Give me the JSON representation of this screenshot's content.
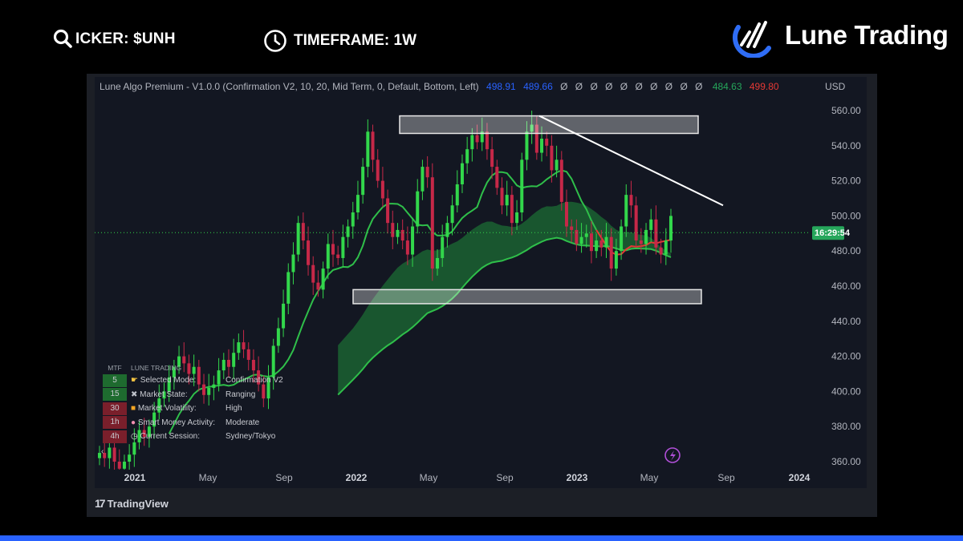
{
  "header": {
    "ticker_label": "ICKER: $UNH",
    "timeframe_label": "TIMEFRAME: 1W",
    "brand_name": "Lune Trading",
    "search_icon": "search-icon",
    "clock_icon": "clock-icon"
  },
  "indicator": {
    "label": "Lune Algo Premium - V1.0.0 (Confirmation V2, 10, 20, Mid Term, 0, Default, Bottom, Left)",
    "value_blue_1": "498.91",
    "value_blue_2": "489.66",
    "empty_values": "Ø Ø Ø Ø Ø Ø Ø Ø Ø Ø",
    "value_green": "484.63",
    "value_red": "499.80",
    "colors": {
      "blue": "#2962ff",
      "green": "#26a65b",
      "red": "#e53935",
      "text": "#b2b5be"
    }
  },
  "axis": {
    "currency": "USD",
    "price_ticks": [
      "560.00",
      "540.00",
      "520.00",
      "500.00",
      "480.00",
      "460.00",
      "440.00",
      "420.00",
      "400.00",
      "380.00",
      "360.00"
    ],
    "time_ticks": [
      "2021",
      "May",
      "Sep",
      "2022",
      "May",
      "Sep",
      "2023",
      "May",
      "Sep",
      "2024"
    ],
    "countdown": "16:29:54"
  },
  "mtf_table": {
    "header_left": "MTF",
    "header_right": "LUNE TRADING",
    "rows": [
      {
        "tf": "5",
        "label": "Selected Mode:",
        "value": "Confirmation V2",
        "color": "#1e6b2f"
      },
      {
        "tf": "15",
        "label": "Market State:",
        "value": "Ranging",
        "color": "#1e6b2f"
      },
      {
        "tf": "30",
        "label": "Market Volatility:",
        "value": "High",
        "color": "#7a1f2b"
      },
      {
        "tf": "1h",
        "label": "Smart Money Activity:",
        "value": "Moderate",
        "color": "#7a1f2b"
      },
      {
        "tf": "4h",
        "label": "Current Session:",
        "value": "Sydney/Tokyo",
        "color": "#7a1f2b"
      }
    ]
  },
  "footer": {
    "tradingview_label": "TradingView"
  },
  "chart_data": {
    "type": "candlestick",
    "title": "",
    "ticker": "$UNH",
    "timeframe": "1W",
    "ylim": [
      355,
      565
    ],
    "x_ticks": [
      "2021",
      "May",
      "Sep",
      "2022",
      "May",
      "Sep",
      "2023",
      "May",
      "Sep",
      "2024"
    ],
    "resistance_zone": [
      547,
      557
    ],
    "support_zone": [
      450,
      458
    ],
    "trendline": {
      "from_price": 557,
      "from_label": "Nov 2022",
      "to_price": 506,
      "to_label": "Aug 2023"
    },
    "current_price_line": 490.5,
    "candles_close": [
      365,
      362,
      368,
      360,
      356,
      360,
      364,
      371,
      378,
      374,
      380,
      388,
      396,
      400,
      408,
      414,
      420,
      416,
      410,
      414,
      404,
      398,
      402,
      404,
      412,
      418,
      414,
      422,
      428,
      424,
      418,
      412,
      404,
      396,
      408,
      426,
      436,
      450,
      468,
      478,
      496,
      486,
      472,
      462,
      458,
      470,
      484,
      478,
      476,
      488,
      494,
      502,
      512,
      528,
      548,
      532,
      520,
      510,
      496,
      488,
      492,
      486,
      478,
      494,
      514,
      528,
      522,
      470,
      476,
      488,
      496,
      506,
      518,
      530,
      538,
      546,
      542,
      548,
      538,
      528,
      516,
      506,
      512,
      496,
      502,
      532,
      548,
      552,
      536,
      544,
      540,
      526,
      532,
      508,
      494,
      492,
      484,
      488,
      490,
      480,
      486,
      482,
      488,
      470,
      480,
      494,
      512,
      506,
      486,
      484,
      492,
      498,
      482,
      478,
      486,
      500
    ]
  }
}
